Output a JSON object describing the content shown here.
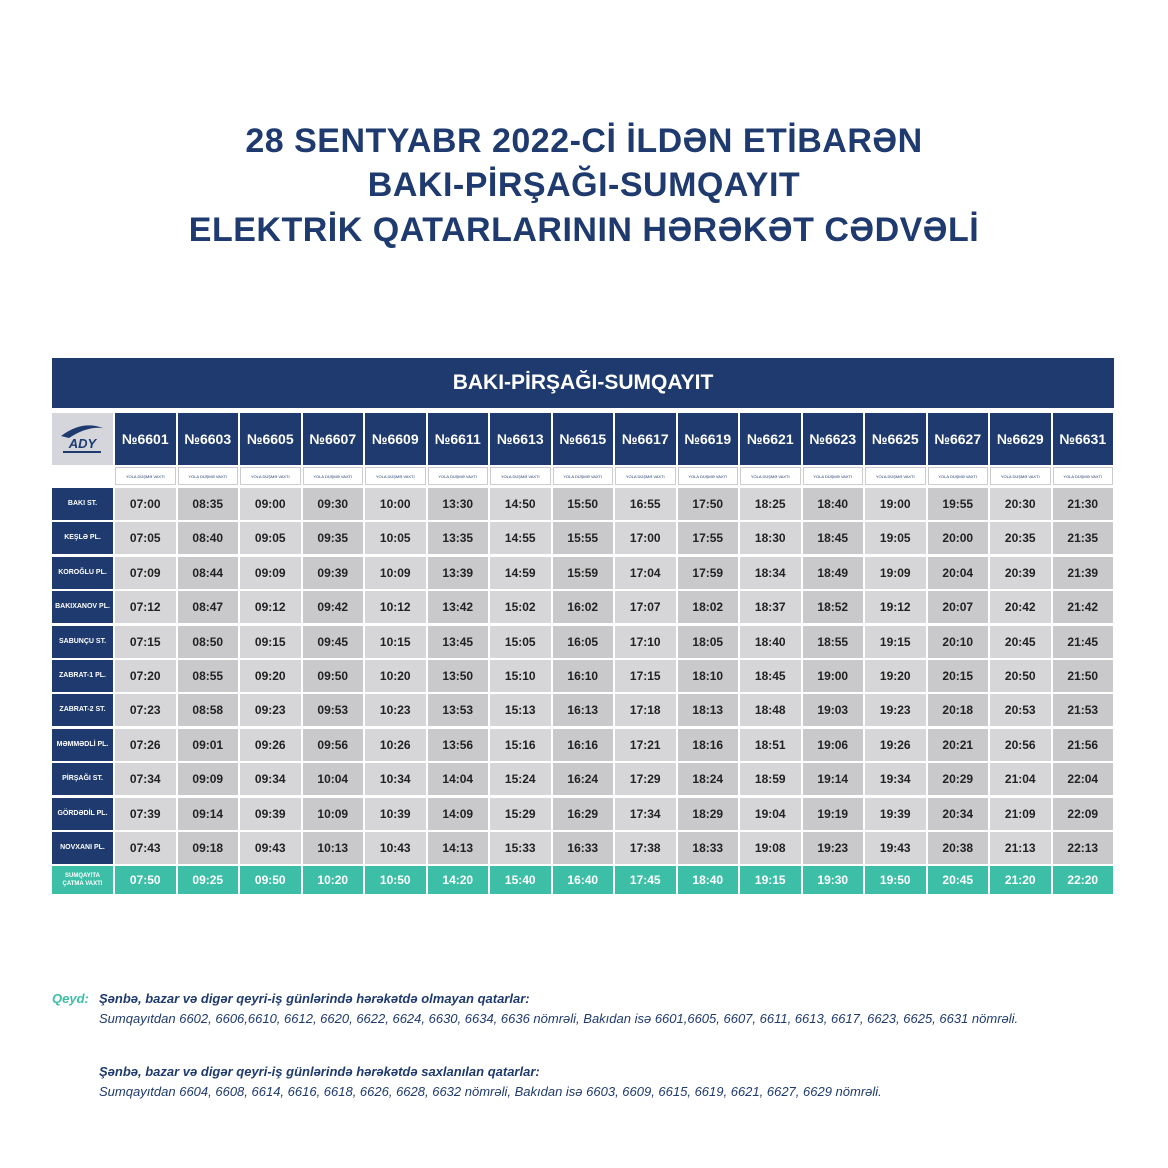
{
  "header": {
    "title_lines": [
      "28 SENTYABR 2022-Cİ İLDƏN ETİBARƏN",
      "BAKI-PİRŞAĞI-SUMQAYIT",
      "ELEKTRİK QATARLARININ HƏRƏKƏT CƏDVƏLİ"
    ]
  },
  "table": {
    "title": "BAKI-PİRŞAĞI-SUMQAYIT",
    "logo": "ADY",
    "trains": [
      "№6601",
      "№6603",
      "№6605",
      "№6607",
      "№6609",
      "№6611",
      "№6613",
      "№6615",
      "№6617",
      "№6619",
      "№6621",
      "№6623",
      "№6625",
      "№6627",
      "№6629",
      "№6631"
    ],
    "subheader": "YOLA DÜŞMƏ VAXTI",
    "rows": [
      {
        "station": "BAKI ST.",
        "times": [
          "07:00",
          "08:35",
          "09:00",
          "09:30",
          "10:00",
          "13:30",
          "14:50",
          "15:50",
          "16:55",
          "17:50",
          "18:25",
          "18:40",
          "19:00",
          "19:55",
          "20:30",
          "21:30"
        ]
      },
      {
        "station": "KEŞLƏ PL.",
        "times": [
          "07:05",
          "08:40",
          "09:05",
          "09:35",
          "10:05",
          "13:35",
          "14:55",
          "15:55",
          "17:00",
          "17:55",
          "18:30",
          "18:45",
          "19:05",
          "20:00",
          "20:35",
          "21:35"
        ]
      },
      {
        "station": "KOROĞLU PL.",
        "times": [
          "07:09",
          "08:44",
          "09:09",
          "09:39",
          "10:09",
          "13:39",
          "14:59",
          "15:59",
          "17:04",
          "17:59",
          "18:34",
          "18:49",
          "19:09",
          "20:04",
          "20:39",
          "21:39"
        ]
      },
      {
        "station": "BAKIXANOV PL.",
        "times": [
          "07:12",
          "08:47",
          "09:12",
          "09:42",
          "10:12",
          "13:42",
          "15:02",
          "16:02",
          "17:07",
          "18:02",
          "18:37",
          "18:52",
          "19:12",
          "20:07",
          "20:42",
          "21:42"
        ]
      },
      {
        "station": "SABUNÇU ST.",
        "times": [
          "07:15",
          "08:50",
          "09:15",
          "09:45",
          "10:15",
          "13:45",
          "15:05",
          "16:05",
          "17:10",
          "18:05",
          "18:40",
          "18:55",
          "19:15",
          "20:10",
          "20:45",
          "21:45"
        ]
      },
      {
        "station": "ZABRAT-1 PL.",
        "times": [
          "07:20",
          "08:55",
          "09:20",
          "09:50",
          "10:20",
          "13:50",
          "15:10",
          "16:10",
          "17:15",
          "18:10",
          "18:45",
          "19:00",
          "19:20",
          "20:15",
          "20:50",
          "21:50"
        ]
      },
      {
        "station": "ZABRAT-2 ST.",
        "times": [
          "07:23",
          "08:58",
          "09:23",
          "09:53",
          "10:23",
          "13:53",
          "15:13",
          "16:13",
          "17:18",
          "18:13",
          "18:48",
          "19:03",
          "19:23",
          "20:18",
          "20:53",
          "21:53"
        ]
      },
      {
        "station": "MƏMMƏDLİ PL.",
        "times": [
          "07:26",
          "09:01",
          "09:26",
          "09:56",
          "10:26",
          "13:56",
          "15:16",
          "16:16",
          "17:21",
          "18:16",
          "18:51",
          "19:06",
          "19:26",
          "20:21",
          "20:56",
          "21:56"
        ]
      },
      {
        "station": "PİRŞAĞI ST.",
        "times": [
          "07:34",
          "09:09",
          "09:34",
          "10:04",
          "10:34",
          "14:04",
          "15:24",
          "16:24",
          "17:29",
          "18:24",
          "18:59",
          "19:14",
          "19:34",
          "20:29",
          "21:04",
          "22:04"
        ]
      },
      {
        "station": "GÖRDƏDİL PL.",
        "times": [
          "07:39",
          "09:14",
          "09:39",
          "10:09",
          "10:39",
          "14:09",
          "15:29",
          "16:29",
          "17:34",
          "18:29",
          "19:04",
          "19:19",
          "19:39",
          "20:34",
          "21:09",
          "22:09"
        ]
      },
      {
        "station": "NOVXANI PL.",
        "times": [
          "07:43",
          "09:18",
          "09:43",
          "10:13",
          "10:43",
          "14:13",
          "15:33",
          "16:33",
          "17:38",
          "18:33",
          "19:08",
          "19:23",
          "19:43",
          "20:38",
          "21:13",
          "22:13"
        ]
      }
    ],
    "arrival": {
      "station": "SUMQAYITA ÇATMA VAXTI",
      "times": [
        "07:50",
        "09:25",
        "09:50",
        "10:20",
        "10:50",
        "14:20",
        "15:40",
        "16:40",
        "17:45",
        "18:40",
        "19:15",
        "19:30",
        "19:50",
        "20:45",
        "21:20",
        "22:20"
      ]
    }
  },
  "note": {
    "label": "Qeyd:",
    "paragraphs": [
      {
        "heading": "Şənbə, bazar və digər qeyri-iş günlərində hərəkətdə olmayan qatarlar:",
        "text": "Sumqayıtdan 6602, 6606,6610, 6612, 6620, 6622, 6624, 6630, 6634, 6636 nömrəli, Bakıdan isə  6601,6605, 6607, 6611, 6613, 6617, 6623, 6625, 6631 nömrəli."
      },
      {
        "heading": "Şənbə, bazar və digər qeyri-iş günlərində hərəkətdə saxlanılan qatarlar:",
        "text": "Sumqayıtdan 6604, 6608, 6614, 6616, 6618, 6626, 6628, 6632 nömrəli, Bakıdan isə 6603, 6609, 6615, 6619, 6621, 6627, 6629 nömrəli."
      }
    ]
  }
}
